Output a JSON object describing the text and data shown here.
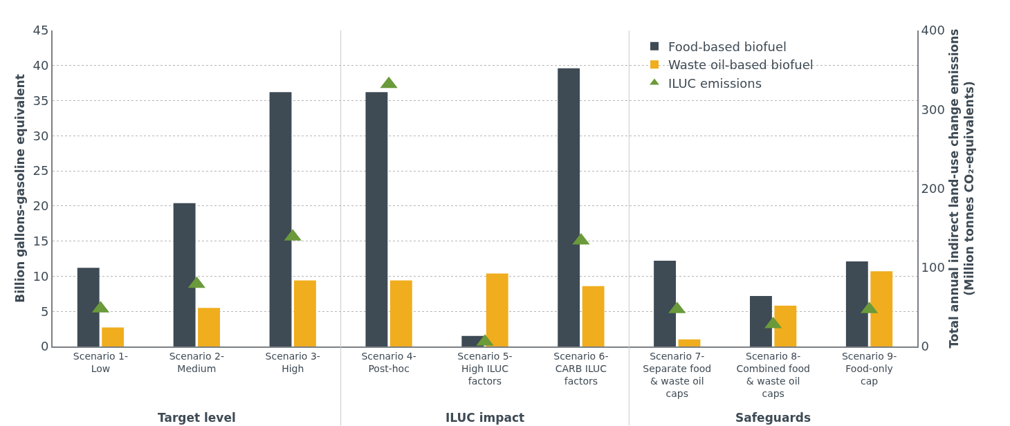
{
  "chart_data": {
    "type": "bar",
    "categories": [
      "Scenario 1-\nLow",
      "Scenario 2-\nMedium",
      "Scenario 3-\nHigh",
      "Scenario 4-\nPost-hoc",
      "Scenario 5-\nHigh ILUC\nfactors",
      "Scenario 6-\nCARB ILUC\nfactors",
      "Scenario 7-\nSeparate food\n& waste oil\ncaps",
      "Scenario 8-\nCombined food\n& waste oil\ncaps",
      "Scenario 9-\nFood-only\ncap"
    ],
    "series": [
      {
        "name": "Food-based biofuel",
        "color": "#3e4a54",
        "values": [
          11.2,
          20.4,
          36.2,
          36.2,
          1.5,
          39.6,
          12.2,
          7.2,
          12.1
        ]
      },
      {
        "name": "Waste oil-based biofuel",
        "color": "#f0ad1e",
        "values": [
          2.7,
          5.5,
          9.4,
          9.4,
          10.4,
          8.6,
          1.0,
          5.8,
          10.7
        ]
      },
      {
        "name": "ILUC emissions",
        "color": "#6a9a3a",
        "type": "scatter",
        "axis": "y2",
        "marker": "triangle",
        "values": [
          48,
          79,
          139,
          332,
          6,
          134,
          47,
          28,
          47
        ]
      }
    ],
    "ylabel": "Billion gallons-gasoline equivalent",
    "y2label": "Total annual indirect land-use change emissions\n(Million tonnes CO₂-equivalents)",
    "ylim": [
      0,
      45
    ],
    "yticks": [
      0,
      5,
      10,
      15,
      20,
      25,
      30,
      35,
      40,
      45
    ],
    "y2lim": [
      0,
      400
    ],
    "y2ticks": [
      0,
      100,
      200,
      300,
      400
    ],
    "annotations": [
      "Target level",
      "ILUC impact",
      "Safeguards"
    ],
    "grid": "y",
    "legend": "top right"
  }
}
